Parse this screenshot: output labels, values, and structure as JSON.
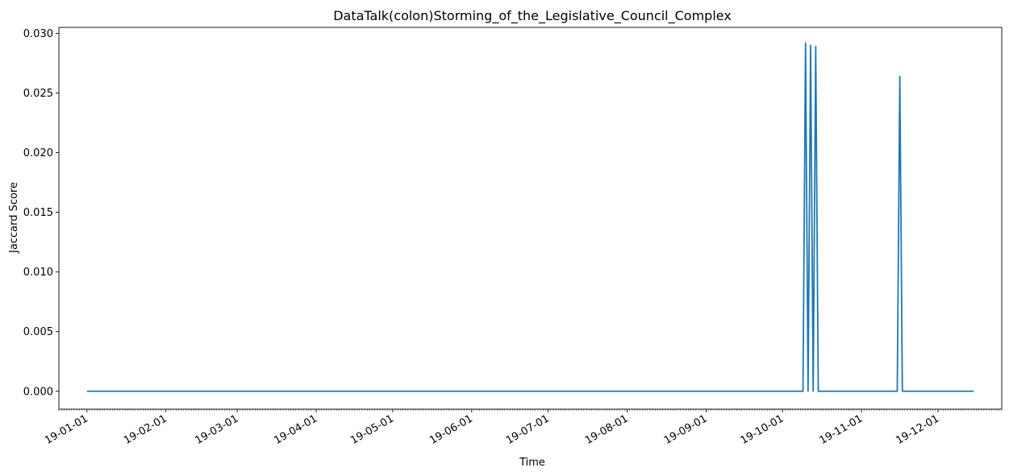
{
  "chart_data": {
    "type": "line",
    "title": "DataTalk(colon)Storming_of_the_Legislative_Council_Complex",
    "xlabel": "Time",
    "ylabel": "Jaccard Score",
    "x_tick_labels": [
      "19-01-01",
      "19-02-01",
      "19-03-01",
      "19-04-01",
      "19-05-01",
      "19-06-01",
      "19-07-01",
      "19-08-01",
      "19-09-01",
      "19-10-01",
      "19-11-01",
      "19-12-01"
    ],
    "y_tick_labels": [
      "0.000",
      "0.005",
      "0.010",
      "0.015",
      "0.020",
      "0.025",
      "0.030"
    ],
    "ylim": [
      -0.0015,
      0.0305
    ],
    "xlim": [
      "2018-12-21",
      "2019-12-26"
    ],
    "grid": false,
    "line_color": "#1f77b4",
    "series": [
      {
        "x": [
          "2019-01-01",
          "2019-10-09",
          "2019-10-10",
          "2019-10-11",
          "2019-10-12",
          "2019-10-13",
          "2019-10-14",
          "2019-10-15",
          "2019-10-16",
          "2019-11-15",
          "2019-11-16",
          "2019-11-17",
          "2019-12-15"
        ],
        "values": [
          0,
          0,
          0.0292,
          0,
          0.029,
          0,
          0.0289,
          0,
          0,
          0,
          0.0264,
          0,
          0
        ]
      }
    ]
  }
}
